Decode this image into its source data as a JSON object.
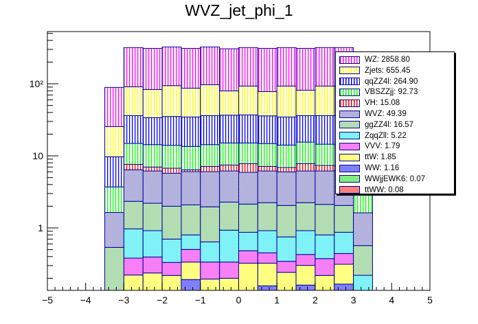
{
  "chart_data": {
    "type": "bar",
    "stacked": true,
    "title": "WVZ_jet_phi_1",
    "xlabel": "",
    "ylabel": "",
    "xlim": [
      -5,
      5
    ],
    "ylim": [
      0.136,
      530
    ],
    "yscale": "log",
    "x_ticks": [
      "−5",
      "−4",
      "−3",
      "−2",
      "−1",
      "0",
      "1",
      "2",
      "3",
      "4",
      "5"
    ],
    "x_tick_values": [
      -5,
      -4,
      -3,
      -2,
      -1,
      0,
      1,
      2,
      3,
      4,
      5
    ],
    "y_ticks": [
      {
        "label": "1",
        "value": 1
      },
      {
        "label": "10",
        "value": 10
      },
      {
        "label": "10²",
        "value": 100
      }
    ],
    "bin_edges": [
      -3.5,
      -3,
      -2.5,
      -2,
      -1.5,
      -1,
      -0.5,
      0,
      0.5,
      1,
      1.5,
      2,
      2.5,
      3,
      3.5
    ],
    "legend_placement": "top-right",
    "series": [
      {
        "name": "ttWW",
        "label": "ttWW: 0.08",
        "color": "#ff0000",
        "fill": "checker",
        "stack_tops": [
          0.05,
          0.05,
          0.05,
          0.05,
          0.05,
          0.05,
          0.05,
          0.05,
          0.05,
          0.05,
          0.05,
          0.05,
          0.05,
          0.05
        ]
      },
      {
        "name": "WWjjEWK6",
        "label": "WWjjEWK6: 0.07",
        "color": "#00dd00",
        "fill": "checker",
        "stack_tops": [
          0.06,
          0.06,
          0.06,
          0.06,
          0.06,
          0.06,
          0.06,
          0.06,
          0.06,
          0.06,
          0.06,
          0.06,
          0.06,
          0.06
        ]
      },
      {
        "name": "WW",
        "label": "WW: 1.16",
        "color": "#0000ff",
        "fill": "checker",
        "stack_tops": [
          0.07,
          0.07,
          0.07,
          0.07,
          0.192,
          0.07,
          0.07,
          0.07,
          0.157,
          0.07,
          0.161,
          0.07,
          0.166,
          0.07
        ]
      },
      {
        "name": "ttW",
        "label": "ttW: 1.85",
        "color": "#ffff00",
        "fill": "checker",
        "stack_tops": [
          0.08,
          0.222,
          0.237,
          0.219,
          0.336,
          0.195,
          0.2,
          0.324,
          0.324,
          0.242,
          0.302,
          0.219,
          0.313,
          0.1
        ]
      },
      {
        "name": "VVV",
        "label": "VVV: 1.79",
        "color": "#ee00ee",
        "fill": "checker",
        "stack_tops": [
          0.09,
          0.381,
          0.395,
          0.332,
          0.503,
          0.336,
          0.336,
          0.482,
          0.451,
          0.344,
          0.428,
          0.375,
          0.441,
          0.11
        ]
      },
      {
        "name": "ZqqZll",
        "label": "ZqqZll: 5.22",
        "color": "#00e5ee",
        "fill": "checker",
        "stack_tops": [
          0.12,
          0.97,
          0.916,
          0.7,
          0.8,
          0.64,
          0.93,
          0.87,
          0.916,
          0.75,
          0.916,
          0.8,
          0.87,
          0.22
        ]
      },
      {
        "name": "ggZZ4l",
        "label": "ggZZ4l: 16.57",
        "color": "#66bb66",
        "fill": "checker",
        "stack_tops": [
          0.537,
          2.34,
          2.2,
          2.0,
          2.09,
          1.96,
          2.28,
          2.14,
          2.24,
          2.05,
          2.24,
          2.12,
          2.05,
          0.569
        ]
      },
      {
        "name": "WVZ",
        "label": "WVZ: 49.39",
        "color": "#6666bb",
        "fill": "checker",
        "stack_tops": [
          1.64,
          6.4,
          6.17,
          5.74,
          6.04,
          6.04,
          6.17,
          5.91,
          6.17,
          5.99,
          6.17,
          6.17,
          6.26,
          1.62
        ]
      },
      {
        "name": "VH",
        "label": "VH: 15.08",
        "color": "#ff0000",
        "fill": "vlines",
        "stack_tops": [
          1.64,
          7.63,
          6.99,
          6.74,
          6.4,
          7.14,
          7.46,
          7.8,
          7.14,
          6.89,
          7.8,
          7.36,
          7.25,
          1.62
        ]
      },
      {
        "name": "VBSZZjj",
        "label": "VBSZZjj: 92.73",
        "color": "#00ff00",
        "fill": "vlines",
        "stack_tops": [
          3.7,
          14.9,
          14.3,
          14.0,
          13.5,
          14.3,
          15.1,
          15.1,
          14.8,
          14.1,
          15.5,
          14.5,
          14.5,
          3.9
        ]
      },
      {
        "name": "qqZZ4l",
        "label": "qqZZ4l: 264.90",
        "color": "#0000ff",
        "fill": "vlines",
        "stack_tops": [
          9.71,
          36.2,
          33.9,
          35.2,
          34.6,
          36.2,
          36.7,
          37.0,
          35.9,
          34.6,
          36.2,
          36.2,
          36.2,
          10
        ]
      },
      {
        "name": "Zjets",
        "label": "Zjets: 655.45",
        "color": "#ffff00",
        "fill": "vlines",
        "stack_tops": [
          25.5,
          91,
          83.3,
          94.3,
          87,
          97,
          79.7,
          93,
          78,
          93,
          81.5,
          93,
          93,
          26
        ]
      },
      {
        "name": "WZ",
        "label": "WZ: 2858.80",
        "color": "#ff00ff",
        "fill": "vlines",
        "stack_tops": [
          89,
          317.6,
          310,
          324,
          310,
          324,
          306,
          317.6,
          310,
          317.6,
          310,
          317.6,
          317.6,
          92
        ]
      }
    ]
  }
}
